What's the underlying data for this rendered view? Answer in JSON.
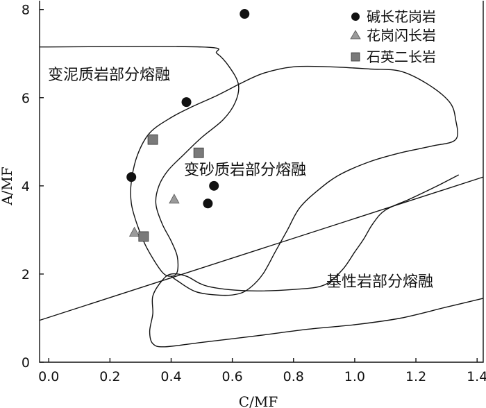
{
  "chart_data": {
    "type": "scatter",
    "xlabel": "C/MF",
    "ylabel": "A/MF",
    "xlim": [
      -0.03,
      1.42
    ],
    "ylim": [
      0,
      8.2
    ],
    "x_ticks": [
      "0.0",
      "0.2",
      "0.4",
      "0.6",
      "0.8",
      "1.0",
      "1.2",
      "1.4"
    ],
    "x_tick_values": [
      0.0,
      0.2,
      0.4,
      0.6,
      0.8,
      1.0,
      1.2,
      1.4
    ],
    "y_ticks": [
      "0",
      "2",
      "4",
      "6",
      "8"
    ],
    "y_tick_values": [
      0,
      2,
      4,
      6,
      8
    ],
    "grid": false,
    "legend_position": "top-right",
    "colors": {
      "circle": "#111111",
      "triangle": "#9a9a9a",
      "square": "#7a7a7a"
    },
    "series": [
      {
        "name": "碱长花岗岩",
        "marker": "circle",
        "x": [
          0.64,
          0.45,
          0.27,
          0.54,
          0.52
        ],
        "y": [
          7.9,
          5.9,
          4.2,
          4.0,
          3.6
        ]
      },
      {
        "name": "花岗闪长岩",
        "marker": "triangle",
        "x": [
          0.41,
          0.28
        ],
        "y": [
          3.7,
          2.95
        ]
      },
      {
        "name": "石英二长岩",
        "marker": "square",
        "x": [
          0.34,
          0.49,
          0.31
        ],
        "y": [
          5.05,
          4.75,
          2.85
        ]
      }
    ],
    "regions": [
      {
        "label": "变泥质岩部分熔融",
        "outline": [
          [
            -0.03,
            7.15
          ],
          [
            0.5,
            7.15
          ],
          [
            0.55,
            7.0
          ],
          [
            0.59,
            6.7
          ],
          [
            0.62,
            6.3
          ],
          [
            0.61,
            5.9
          ],
          [
            0.57,
            5.5
          ],
          [
            0.5,
            5.1
          ],
          [
            0.44,
            4.7
          ],
          [
            0.39,
            4.35
          ],
          [
            0.36,
            4.0
          ],
          [
            0.35,
            3.6
          ],
          [
            0.37,
            3.15
          ],
          [
            0.4,
            2.75
          ],
          [
            0.42,
            2.4
          ],
          [
            0.42,
            2.05
          ],
          [
            0.4,
            1.95
          ],
          [
            0.37,
            2.05
          ],
          [
            0.32,
            2.6
          ],
          [
            0.29,
            3.1
          ],
          [
            0.27,
            3.6
          ],
          [
            0.27,
            4.1
          ],
          [
            0.29,
            4.7
          ],
          [
            0.33,
            5.2
          ],
          [
            0.4,
            5.55
          ],
          [
            0.47,
            5.8
          ],
          [
            0.55,
            6.05
          ],
          [
            0.62,
            6.3
          ]
        ]
      },
      {
        "label": "变砂质岩部分熔融",
        "outline": [
          [
            0.62,
            6.3
          ],
          [
            0.7,
            6.55
          ],
          [
            0.8,
            6.7
          ],
          [
            0.92,
            6.7
          ],
          [
            1.05,
            6.65
          ],
          [
            1.15,
            6.6
          ],
          [
            1.24,
            6.3
          ],
          [
            1.31,
            5.9
          ],
          [
            1.33,
            5.5
          ],
          [
            1.33,
            5.05
          ],
          [
            1.25,
            4.9
          ],
          [
            1.15,
            4.75
          ],
          [
            1.05,
            4.55
          ],
          [
            0.95,
            4.25
          ],
          [
            0.88,
            3.9
          ],
          [
            0.82,
            3.5
          ],
          [
            0.78,
            3.0
          ],
          [
            0.74,
            2.5
          ],
          [
            0.7,
            2.0
          ],
          [
            0.66,
            1.7
          ],
          [
            0.62,
            1.55
          ],
          [
            0.56,
            1.52
          ],
          [
            0.48,
            1.6
          ],
          [
            0.42,
            1.85
          ],
          [
            0.4,
            1.95
          ]
        ]
      },
      {
        "label": "基性岩部分熔融",
        "outline": [
          [
            1.34,
            4.25
          ],
          [
            1.27,
            4.0
          ],
          [
            1.18,
            3.7
          ],
          [
            1.1,
            3.45
          ],
          [
            1.06,
            3.15
          ],
          [
            1.03,
            2.8
          ],
          [
            1.0,
            2.5
          ],
          [
            0.96,
            2.1
          ],
          [
            0.9,
            1.75
          ],
          [
            0.8,
            1.65
          ],
          [
            0.65,
            1.62
          ],
          [
            0.52,
            1.72
          ],
          [
            0.45,
            1.95
          ],
          [
            0.4,
            2.0
          ],
          [
            0.37,
            1.85
          ],
          [
            0.34,
            1.5
          ],
          [
            0.34,
            1.1
          ],
          [
            0.33,
            0.7
          ],
          [
            0.34,
            0.42
          ],
          [
            0.38,
            0.35
          ],
          [
            0.5,
            0.45
          ],
          [
            0.68,
            0.6
          ],
          [
            0.85,
            0.75
          ],
          [
            1.0,
            0.85
          ],
          [
            1.15,
            1.0
          ],
          [
            1.3,
            1.25
          ],
          [
            1.42,
            1.45
          ]
        ]
      }
    ],
    "boundary_line": {
      "x": [
        -0.03,
        1.42
      ],
      "y": [
        0.95,
        4.2
      ]
    }
  }
}
